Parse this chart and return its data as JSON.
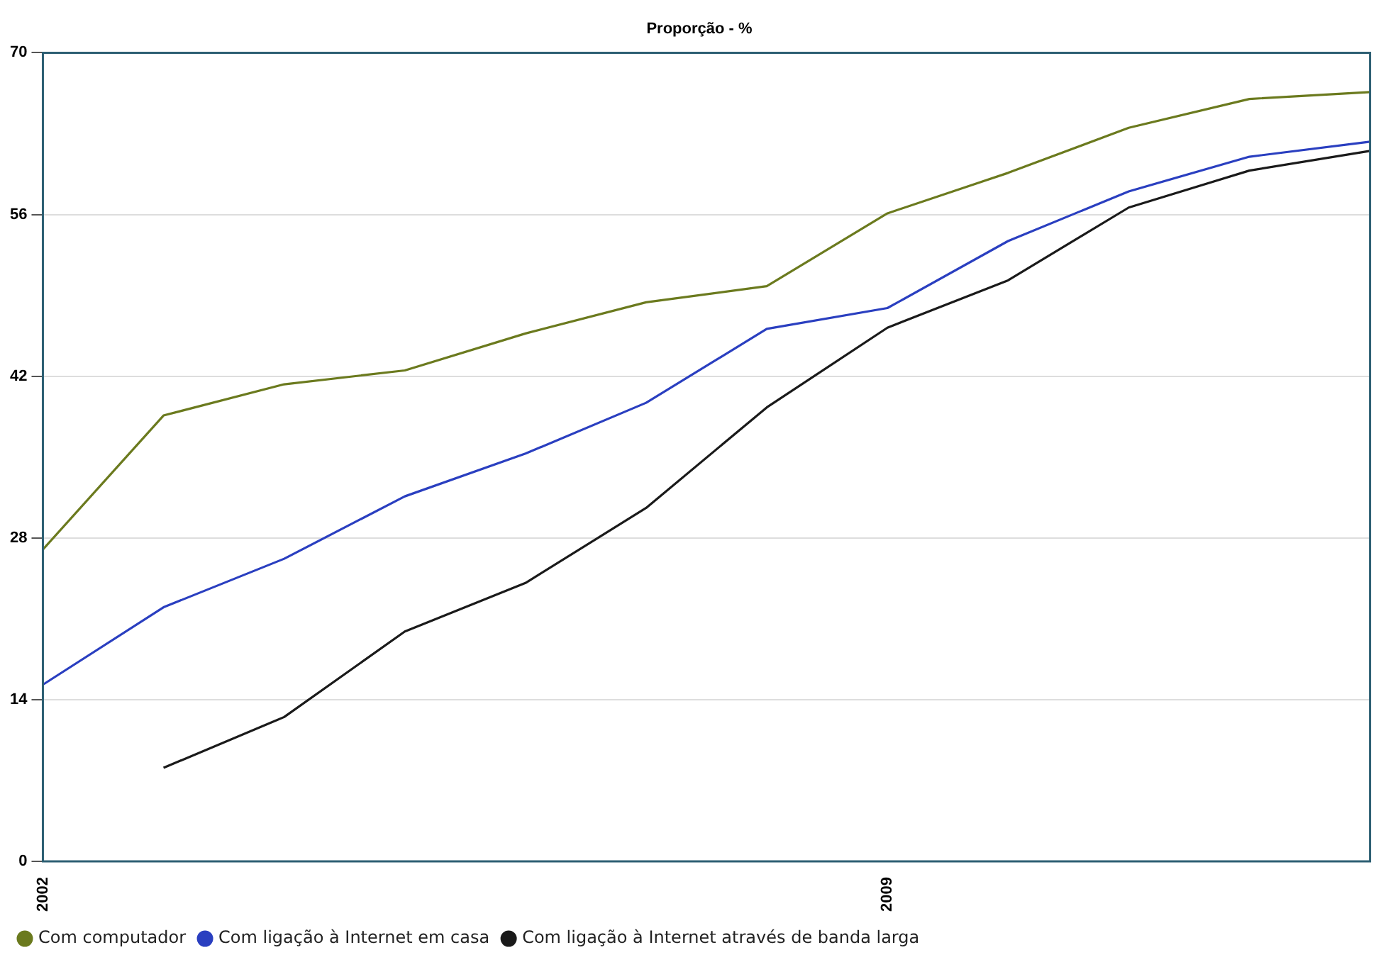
{
  "chart_data": {
    "type": "line",
    "title": "Proporção - %",
    "categories": [
      "2002",
      null,
      null,
      null,
      null,
      null,
      null,
      "2009",
      null,
      null,
      null,
      null
    ],
    "series": [
      {
        "name": "Com computador",
        "color": "#6b7a1e",
        "values": [
          27.0,
          38.6,
          41.3,
          42.5,
          45.7,
          48.4,
          49.8,
          56.1,
          59.6,
          63.5,
          66.0,
          66.6
        ]
      },
      {
        "name": "Com ligação à Internet em casa",
        "color": "#2a3fc0",
        "values": [
          15.3,
          22.0,
          26.2,
          31.6,
          35.3,
          39.7,
          46.1,
          47.9,
          53.7,
          58.0,
          61.0,
          62.3
        ]
      },
      {
        "name": "Com ligação à Internet através de banda larga",
        "color": "#1a1a1a",
        "values": [
          null,
          8.1,
          12.5,
          19.9,
          24.1,
          30.6,
          39.3,
          46.2,
          50.3,
          56.6,
          59.8,
          61.5
        ]
      }
    ],
    "ylim": [
      0,
      70
    ],
    "yticks": [
      0,
      14,
      28,
      42,
      56,
      70
    ],
    "grid": "y",
    "legend": "bottom",
    "line_style": "solid"
  }
}
